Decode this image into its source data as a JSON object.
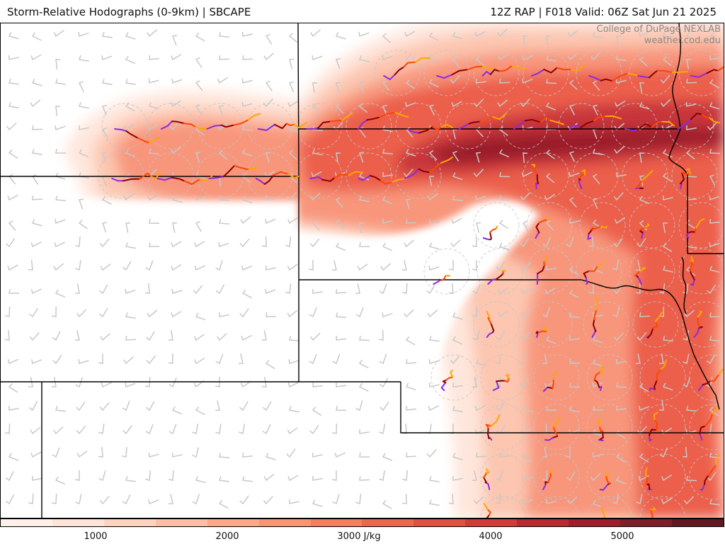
{
  "header": {
    "left_title": "Storm-Relative Hodographs (0-9km) | SBCAPE",
    "right_title": "12Z RAP | F018 Valid: 06Z Sat Jun 21 2025"
  },
  "credit": {
    "line1": "College of DuPage NEXLAB",
    "line2": "weather.cod.edu"
  },
  "colorbar": {
    "tick_labels": [
      "1000",
      "2000",
      "3000 J/kg",
      "4000",
      "5000"
    ],
    "tick_values": [
      1000,
      2000,
      3000,
      4000,
      5000
    ],
    "range": [
      500,
      6000
    ],
    "colors": [
      "#fff1ea",
      "#fee4d8",
      "#fdd3c0",
      "#fcbea5",
      "#fca98b",
      "#fb9474",
      "#f67d5f",
      "#ee6650",
      "#e24f43",
      "#d23b3a",
      "#bb2a33",
      "#a01d2b",
      "#7f1d2a",
      "#5f1a24"
    ]
  },
  "map": {
    "field": "SBCAPE",
    "units": "J/kg",
    "hodograph_colors": {
      "0-1km": "#8b0000",
      "1-3km": "#ff4500",
      "3-6km": "#ffa500",
      "6-9km": "#8a2be2"
    }
  }
}
